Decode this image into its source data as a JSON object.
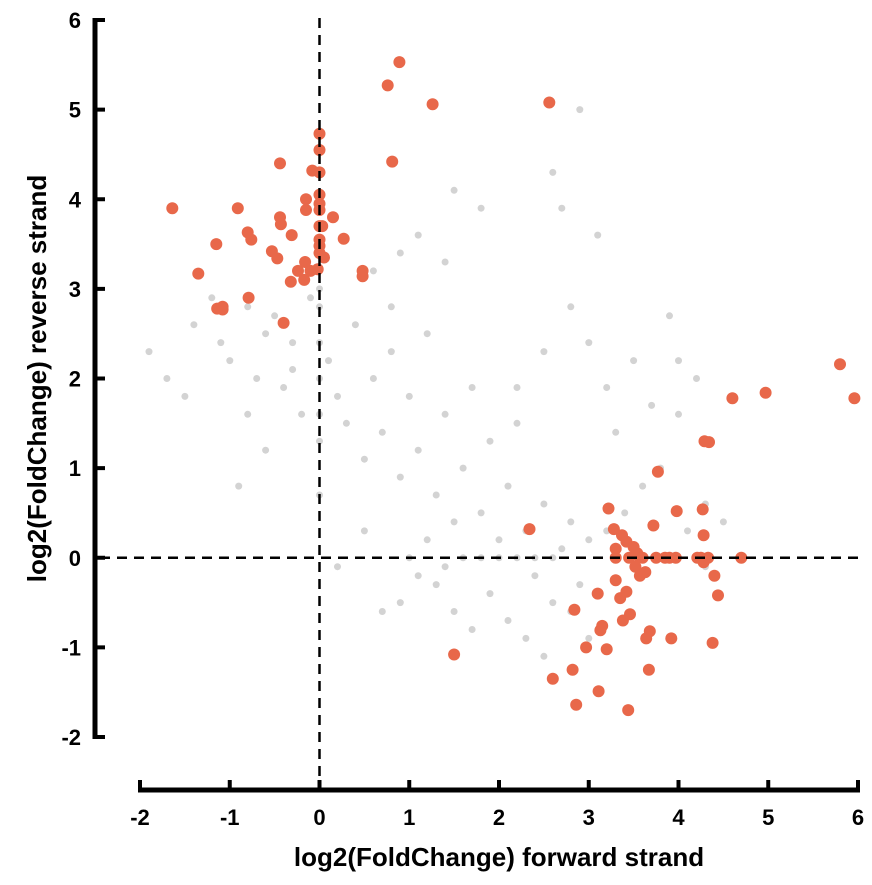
{
  "chart_data": {
    "type": "scatter",
    "title": "",
    "xlabel": "log2(FoldChange) forward strand",
    "ylabel": "log2(FoldChange) reverse strand",
    "xlim": [
      -2,
      6
    ],
    "ylim": [
      -2,
      6
    ],
    "xticks": [
      -2,
      -1,
      0,
      1,
      2,
      3,
      4,
      5,
      6
    ],
    "yticks": [
      -2,
      -1,
      0,
      1,
      2,
      3,
      4,
      5,
      6
    ],
    "xtick_labels": [
      "-2",
      "-1",
      "0",
      "1",
      "2",
      "3",
      "4",
      "5",
      "6"
    ],
    "ytick_labels": [
      "-2",
      "-1",
      "0",
      "1",
      "2",
      "3",
      "4",
      "5",
      "6"
    ],
    "reference_lines": {
      "x": 0,
      "y": 0,
      "style": "dashed"
    },
    "grid": false,
    "legend": "none",
    "colors": {
      "significant": "#e8684a",
      "background": "#d3d3d3",
      "axis": "#000000"
    },
    "series": [
      {
        "key": "background",
        "color": "#d3d3d3",
        "points": [
          [
            -1.9,
            2.3
          ],
          [
            -1.7,
            2.0
          ],
          [
            -1.5,
            1.8
          ],
          [
            -1.4,
            2.6
          ],
          [
            -1.2,
            2.9
          ],
          [
            -1.1,
            2.4
          ],
          [
            -1.0,
            2.2
          ],
          [
            -0.9,
            0.8
          ],
          [
            -0.8,
            1.6
          ],
          [
            -0.7,
            2.0
          ],
          [
            -0.6,
            1.2
          ],
          [
            -0.5,
            2.7
          ],
          [
            -0.4,
            1.9
          ],
          [
            -0.3,
            2.4
          ],
          [
            -0.2,
            1.6
          ],
          [
            -0.1,
            2.9
          ],
          [
            0.0,
            2.0
          ],
          [
            0.0,
            1.6
          ],
          [
            0.0,
            2.4
          ],
          [
            0.0,
            1.3
          ],
          [
            0.1,
            2.2
          ],
          [
            0.2,
            1.8
          ],
          [
            0.3,
            1.5
          ],
          [
            0.4,
            2.6
          ],
          [
            0.5,
            1.1
          ],
          [
            0.6,
            2.0
          ],
          [
            0.7,
            1.4
          ],
          [
            0.8,
            2.3
          ],
          [
            0.9,
            0.9
          ],
          [
            1.0,
            1.8
          ],
          [
            1.1,
            1.2
          ],
          [
            1.2,
            2.5
          ],
          [
            1.3,
            0.7
          ],
          [
            1.4,
            1.6
          ],
          [
            1.5,
            0.4
          ],
          [
            1.6,
            1.0
          ],
          [
            1.7,
            1.9
          ],
          [
            1.8,
            0.5
          ],
          [
            1.9,
            1.3
          ],
          [
            2.0,
            0.2
          ],
          [
            2.1,
            0.8
          ],
          [
            2.2,
            1.5
          ],
          [
            2.3,
            0.3
          ],
          [
            2.4,
            -0.2
          ],
          [
            2.5,
            0.6
          ],
          [
            2.6,
            -0.5
          ],
          [
            2.7,
            0.1
          ],
          [
            2.8,
            0.4
          ],
          [
            2.9,
            -0.3
          ],
          [
            3.0,
            0.2
          ],
          [
            1.2,
            0.2
          ],
          [
            1.4,
            -0.1
          ],
          [
            1.6,
            0.0
          ],
          [
            1.8,
            0.0
          ],
          [
            2.0,
            0.0
          ],
          [
            2.2,
            0.0
          ],
          [
            2.4,
            0.0
          ],
          [
            2.6,
            0.0
          ],
          [
            1.9,
            -0.4
          ],
          [
            2.1,
            -0.7
          ],
          [
            1.7,
            -0.8
          ],
          [
            2.3,
            -0.9
          ],
          [
            2.5,
            -1.1
          ],
          [
            1.5,
            -0.6
          ],
          [
            1.3,
            -0.3
          ],
          [
            1.1,
            -0.2
          ],
          [
            0.9,
            -0.5
          ],
          [
            0.7,
            -0.6
          ],
          [
            2.8,
            -0.6
          ],
          [
            3.0,
            -0.9
          ],
          [
            2.2,
            1.9
          ],
          [
            2.5,
            2.3
          ],
          [
            2.8,
            2.8
          ],
          [
            3.0,
            2.4
          ],
          [
            3.2,
            1.9
          ],
          [
            3.5,
            2.2
          ],
          [
            3.7,
            1.7
          ],
          [
            4.0,
            1.6
          ],
          [
            4.2,
            2.0
          ],
          [
            3.8,
            1.0
          ],
          [
            3.6,
            0.8
          ],
          [
            4.3,
            0.6
          ],
          [
            4.1,
            0.3
          ],
          [
            3.3,
            1.4
          ],
          [
            2.6,
            4.3
          ],
          [
            2.9,
            5.0
          ],
          [
            3.1,
            3.6
          ],
          [
            2.7,
            3.9
          ],
          [
            1.8,
            3.9
          ],
          [
            1.5,
            4.1
          ],
          [
            4.0,
            2.2
          ],
          [
            3.9,
            2.7
          ],
          [
            0.6,
            3.2
          ],
          [
            0.9,
            3.4
          ],
          [
            1.1,
            3.6
          ],
          [
            1.4,
            3.3
          ],
          [
            0.8,
            2.8
          ],
          [
            -0.3,
            2.1
          ],
          [
            -0.6,
            2.5
          ],
          [
            -0.8,
            2.8
          ],
          [
            0.0,
            0.7
          ],
          [
            0.0,
            2.8
          ],
          [
            0.0,
            3.0
          ],
          [
            1.0,
            0.0
          ],
          [
            0.5,
            0.3
          ],
          [
            0.2,
            -0.1
          ],
          [
            4.3,
            -0.1
          ],
          [
            4.5,
            0.4
          ],
          [
            3.4,
            0.5
          ],
          [
            3.2,
            0.3
          ]
        ]
      },
      {
        "key": "significant",
        "color": "#e8684a",
        "points": [
          [
            -1.64,
            3.9
          ],
          [
            -1.35,
            3.17
          ],
          [
            -1.15,
            3.5
          ],
          [
            -1.14,
            2.78
          ],
          [
            -1.08,
            2.8
          ],
          [
            -1.08,
            2.77
          ],
          [
            -0.91,
            3.9
          ],
          [
            -0.8,
            3.63
          ],
          [
            -0.79,
            2.9
          ],
          [
            -0.76,
            3.55
          ],
          [
            -0.53,
            3.42
          ],
          [
            -0.47,
            3.34
          ],
          [
            -0.44,
            4.4
          ],
          [
            -0.44,
            3.8
          ],
          [
            -0.43,
            3.72
          ],
          [
            -0.4,
            2.62
          ],
          [
            -0.32,
            3.08
          ],
          [
            -0.31,
            3.6
          ],
          [
            -0.24,
            3.2
          ],
          [
            -0.17,
            3.1
          ],
          [
            -0.16,
            3.3
          ],
          [
            -0.15,
            4.0
          ],
          [
            -0.15,
            3.88
          ],
          [
            -0.1,
            3.2
          ],
          [
            -0.08,
            4.32
          ],
          [
            -0.02,
            3.22
          ],
          [
            0.0,
            4.73
          ],
          [
            0.0,
            4.55
          ],
          [
            0.0,
            4.3
          ],
          [
            0.0,
            4.05
          ],
          [
            0.0,
            3.95
          ],
          [
            0.0,
            3.88
          ],
          [
            0.0,
            3.7
          ],
          [
            0.0,
            3.55
          ],
          [
            0.0,
            3.48
          ],
          [
            0.0,
            3.4
          ],
          [
            0.03,
            3.7
          ],
          [
            0.05,
            3.35
          ],
          [
            0.15,
            3.8
          ],
          [
            0.27,
            3.56
          ],
          [
            0.48,
            3.2
          ],
          [
            0.48,
            3.14
          ],
          [
            0.76,
            5.27
          ],
          [
            0.81,
            4.42
          ],
          [
            0.89,
            5.53
          ],
          [
            1.26,
            5.06
          ],
          [
            2.56,
            5.08
          ],
          [
            1.5,
            -1.08
          ],
          [
            2.34,
            0.32
          ],
          [
            2.6,
            -1.35
          ],
          [
            2.82,
            -1.25
          ],
          [
            2.84,
            -0.58
          ],
          [
            2.86,
            -1.64
          ],
          [
            2.97,
            -1.0
          ],
          [
            3.1,
            -0.4
          ],
          [
            3.11,
            -1.49
          ],
          [
            3.13,
            -0.81
          ],
          [
            3.15,
            -0.76
          ],
          [
            3.2,
            -1.02
          ],
          [
            3.22,
            0.55
          ],
          [
            3.28,
            0.32
          ],
          [
            3.3,
            0.1
          ],
          [
            3.35,
            -0.45
          ],
          [
            3.37,
            0.25
          ],
          [
            3.38,
            -0.7
          ],
          [
            3.42,
            -0.38
          ],
          [
            3.42,
            0.18
          ],
          [
            3.44,
            -1.7
          ],
          [
            3.46,
            -0.63
          ],
          [
            3.5,
            0.12
          ],
          [
            3.52,
            -0.1
          ],
          [
            3.54,
            0.05
          ],
          [
            3.55,
            0.02
          ],
          [
            3.6,
            0.0
          ],
          [
            3.63,
            -0.16
          ],
          [
            3.64,
            -0.9
          ],
          [
            3.67,
            -1.25
          ],
          [
            3.68,
            -0.82
          ],
          [
            3.72,
            0.36
          ],
          [
            3.75,
            0.0
          ],
          [
            3.77,
            0.96
          ],
          [
            3.85,
            0.0
          ],
          [
            3.92,
            -0.9
          ],
          [
            3.97,
            0.0
          ],
          [
            3.98,
            0.52
          ],
          [
            4.21,
            0.0
          ],
          [
            4.25,
            0.0
          ],
          [
            4.27,
            0.54
          ],
          [
            4.28,
            0.25
          ],
          [
            4.28,
            -0.05
          ],
          [
            4.29,
            1.3
          ],
          [
            4.34,
            1.29
          ],
          [
            4.38,
            -0.95
          ],
          [
            4.4,
            -0.2
          ],
          [
            4.44,
            -0.42
          ],
          [
            4.6,
            1.78
          ],
          [
            4.7,
            0.0
          ],
          [
            4.97,
            1.84
          ],
          [
            5.8,
            2.16
          ],
          [
            5.96,
            1.78
          ],
          [
            3.3,
            0.0
          ],
          [
            3.45,
            0.0
          ],
          [
            3.9,
            0.0
          ],
          [
            4.33,
            0.0
          ],
          [
            3.57,
            -0.2
          ],
          [
            3.3,
            -0.25
          ]
        ]
      }
    ]
  }
}
